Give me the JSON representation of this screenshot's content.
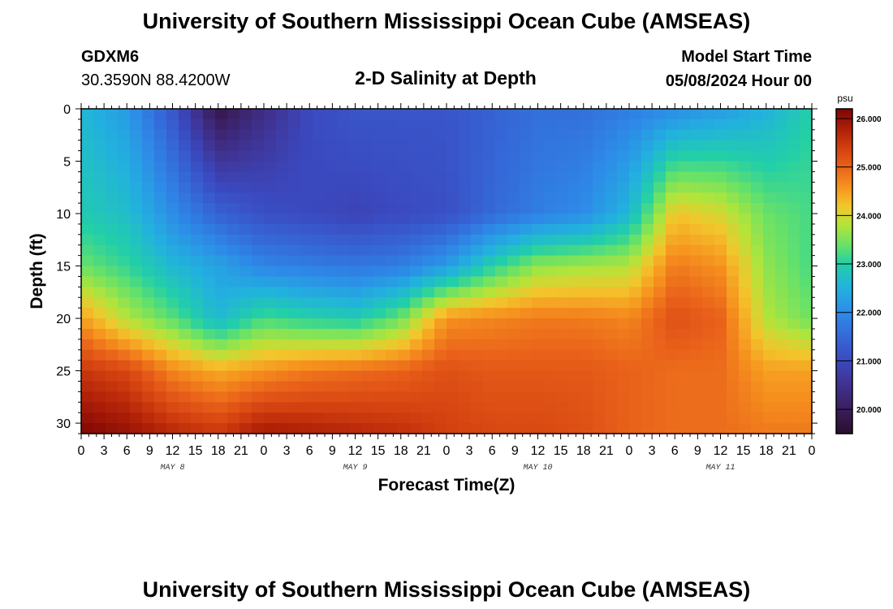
{
  "header": {
    "title": "University of Southern Mississippi Ocean Cube (AMSEAS)",
    "station_id": "GDXM6",
    "station_coords": "30.3590N  88.4200W",
    "subtitle": "2-D Salinity at Depth",
    "model_start_label": "Model Start Time",
    "model_start_value": "05/08/2024 Hour 00"
  },
  "footer": {
    "title": "University of Southern Mississippi Ocean Cube (AMSEAS)"
  },
  "chart_data": {
    "type": "heatmap",
    "title": "2-D Salinity at Depth",
    "xlabel": "Forecast Time(Z)",
    "ylabel": "Depth (ft)",
    "x_range_hours": [
      0,
      96
    ],
    "x_tick_step_hours": 3,
    "x_tick_labels": [
      "0",
      "3",
      "6",
      "9",
      "12",
      "15",
      "18",
      "21",
      "0",
      "3",
      "6",
      "9",
      "12",
      "15",
      "18",
      "21",
      "0",
      "3",
      "6",
      "9",
      "12",
      "15",
      "18",
      "21",
      "0",
      "3",
      "6",
      "9",
      "12",
      "15",
      "18",
      "21",
      "0"
    ],
    "date_labels": [
      {
        "text": "MAY 8",
        "hour": 12
      },
      {
        "text": "MAY 9",
        "hour": 36
      },
      {
        "text": "MAY 10",
        "hour": 60
      },
      {
        "text": "MAY 11",
        "hour": 84
      }
    ],
    "ylim": [
      0,
      31
    ],
    "y_ticks": [
      0,
      5,
      10,
      15,
      20,
      25,
      30
    ],
    "y_tick_labels": [
      "0",
      "5",
      "10",
      "15",
      "20",
      "25",
      "30"
    ],
    "depth_levels_ft": [
      0,
      10,
      15,
      20,
      25,
      31
    ],
    "time_hours": [
      0,
      6,
      12,
      18,
      24,
      30,
      36,
      42,
      48,
      54,
      60,
      66,
      72,
      78,
      84,
      90,
      96
    ],
    "salinity_psu": [
      [
        22.6,
        22.2,
        21.2,
        19.8,
        20.4,
        21.0,
        21.2,
        21.2,
        21.2,
        21.4,
        21.6,
        21.6,
        21.8,
        22.0,
        22.2,
        22.5,
        23.0
      ],
      [
        22.9,
        22.7,
        22.0,
        21.4,
        21.1,
        21.0,
        20.9,
        21.0,
        21.1,
        21.5,
        21.8,
        22.0,
        22.6,
        24.2,
        24.0,
        23.4,
        23.2
      ],
      [
        23.4,
        23.1,
        22.6,
        22.3,
        21.9,
        21.8,
        21.7,
        21.8,
        22.2,
        23.0,
        23.6,
        23.7,
        23.8,
        24.8,
        24.6,
        23.6,
        23.2
      ],
      [
        24.5,
        23.8,
        23.3,
        22.6,
        23.2,
        23.0,
        22.9,
        23.4,
        24.6,
        24.7,
        24.8,
        24.8,
        24.7,
        25.2,
        25.0,
        23.8,
        23.4
      ],
      [
        25.5,
        25.3,
        24.7,
        24.4,
        24.6,
        24.8,
        24.9,
        25.0,
        25.2,
        25.1,
        25.1,
        25.1,
        25.0,
        24.9,
        24.9,
        24.5,
        24.5
      ],
      [
        26.2,
        26.0,
        25.7,
        25.5,
        25.9,
        25.8,
        25.7,
        25.6,
        25.4,
        25.3,
        25.3,
        25.2,
        25.0,
        24.9,
        24.9,
        24.8,
        24.8
      ]
    ],
    "colorbar": {
      "unit": "psu",
      "min": 19.5,
      "max": 26.2,
      "ticks": [
        20,
        21,
        22,
        23,
        24,
        25,
        26
      ],
      "tick_labels": [
        "20.000",
        "21.000",
        "22.000",
        "23.000",
        "24.000",
        "25.000",
        "26.000"
      ],
      "colormap": [
        [
          19.5,
          "#2b0e2e"
        ],
        [
          20.0,
          "#3a1e5c"
        ],
        [
          20.5,
          "#40318f"
        ],
        [
          21.0,
          "#3b49bf"
        ],
        [
          21.5,
          "#3568d8"
        ],
        [
          22.0,
          "#2d8ce8"
        ],
        [
          22.5,
          "#22b1de"
        ],
        [
          23.0,
          "#22cfa8"
        ],
        [
          23.4,
          "#6ae266"
        ],
        [
          23.8,
          "#b3e43a"
        ],
        [
          24.2,
          "#f3c52c"
        ],
        [
          24.6,
          "#f6921e"
        ],
        [
          25.0,
          "#e9611a"
        ],
        [
          25.4,
          "#d23f10"
        ],
        [
          25.8,
          "#ad1e07"
        ],
        [
          26.2,
          "#7e0606"
        ]
      ]
    }
  }
}
